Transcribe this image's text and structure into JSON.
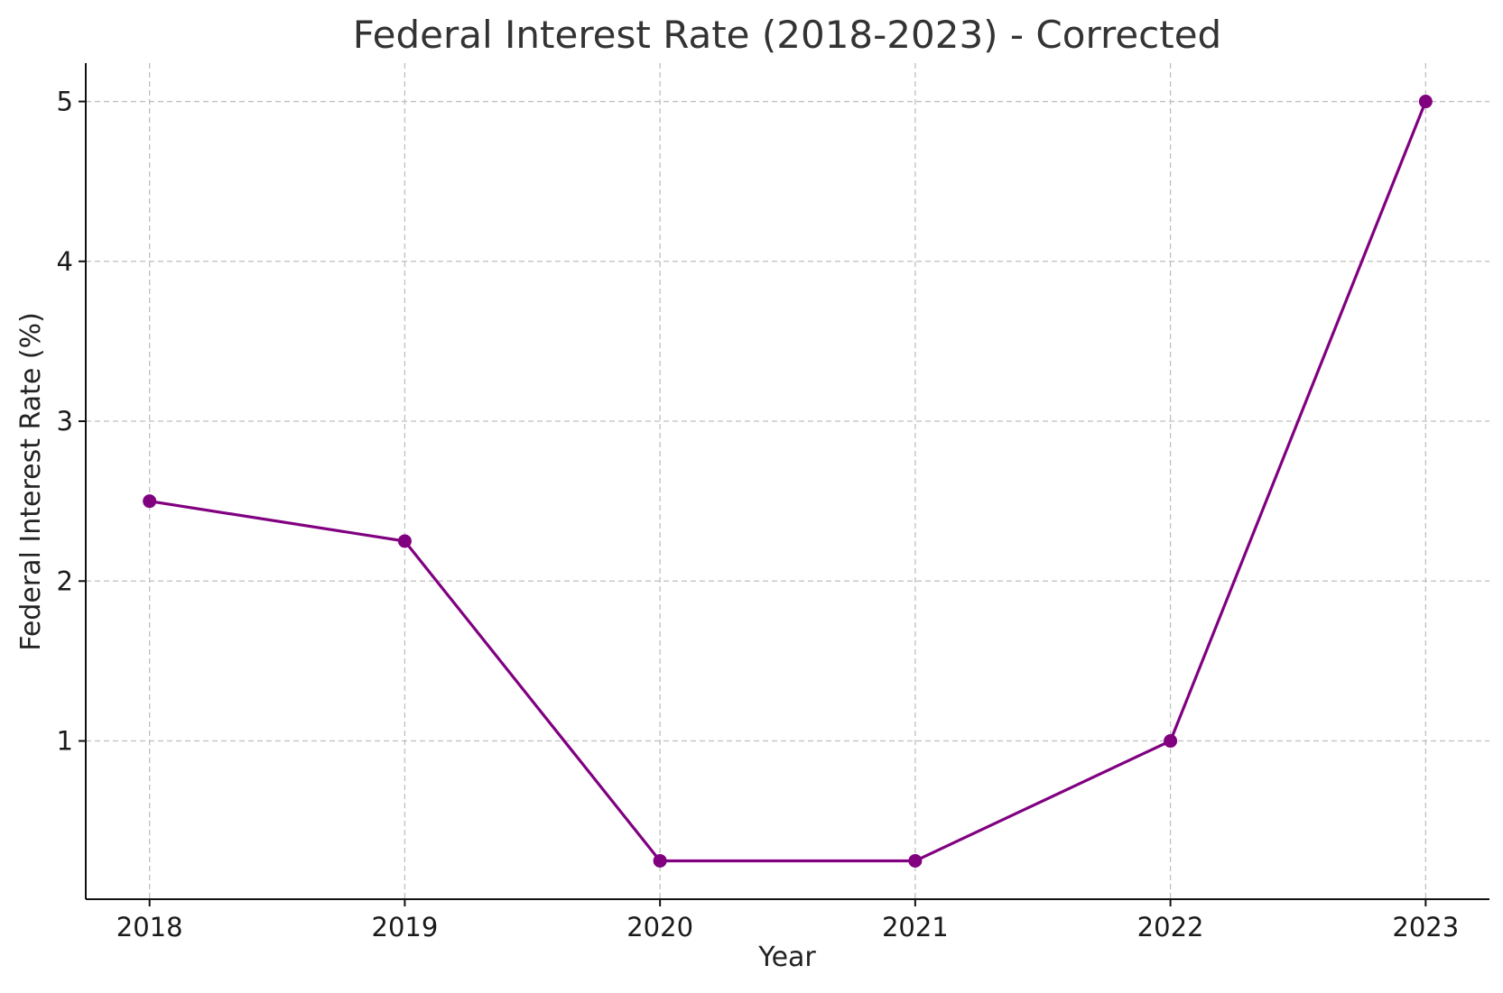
{
  "chart_data": {
    "type": "line",
    "title": "Federal Interest Rate (2018-2023) - Corrected",
    "xlabel": "Year",
    "ylabel": "Federal Interest Rate (%)",
    "x": [
      "2018",
      "2019",
      "2020",
      "2021",
      "2022",
      "2023"
    ],
    "xlim": [
      2017.75,
      2023.25
    ],
    "ylim": [
      0.01,
      5.24
    ],
    "yticks": [
      1,
      2,
      3,
      4,
      5
    ],
    "grid": true,
    "series": [
      {
        "values": [
          2.5,
          2.25,
          0.25,
          0.25,
          1.0,
          5.0
        ],
        "color": "#800080",
        "marker": "circle"
      }
    ]
  }
}
